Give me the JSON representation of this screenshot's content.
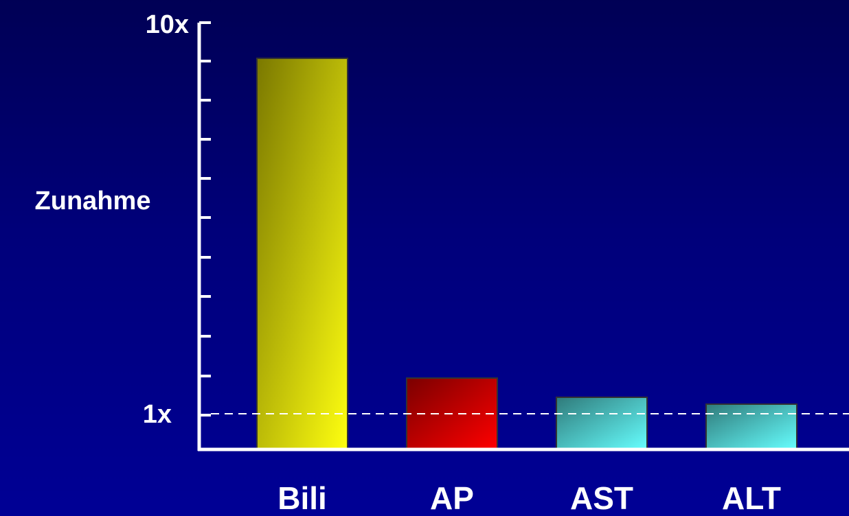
{
  "chart_data": {
    "type": "bar",
    "ylabel": "Zunahme",
    "y_tick_labels": [
      "1x",
      "10x"
    ],
    "ylim": [
      0,
      10
    ],
    "reference_line": {
      "value": 1,
      "style": "dashed"
    },
    "categories": [
      "Bili",
      "AP",
      "AST",
      "ALT"
    ],
    "values": [
      9.9,
      1.77,
      1.3,
      1.12
    ],
    "bar_colors": [
      {
        "dark": "#7a7800",
        "light": "#ffff10"
      },
      {
        "dark": "#7a0000",
        "light": "#ff0000"
      },
      {
        "dark": "#2f7a7a",
        "light": "#66ffff"
      },
      {
        "dark": "#2f7a7a",
        "light": "#66ffff"
      }
    ],
    "axis_color": "#ffffff",
    "minor_ticks": 10,
    "grid": false,
    "legend": false
  }
}
